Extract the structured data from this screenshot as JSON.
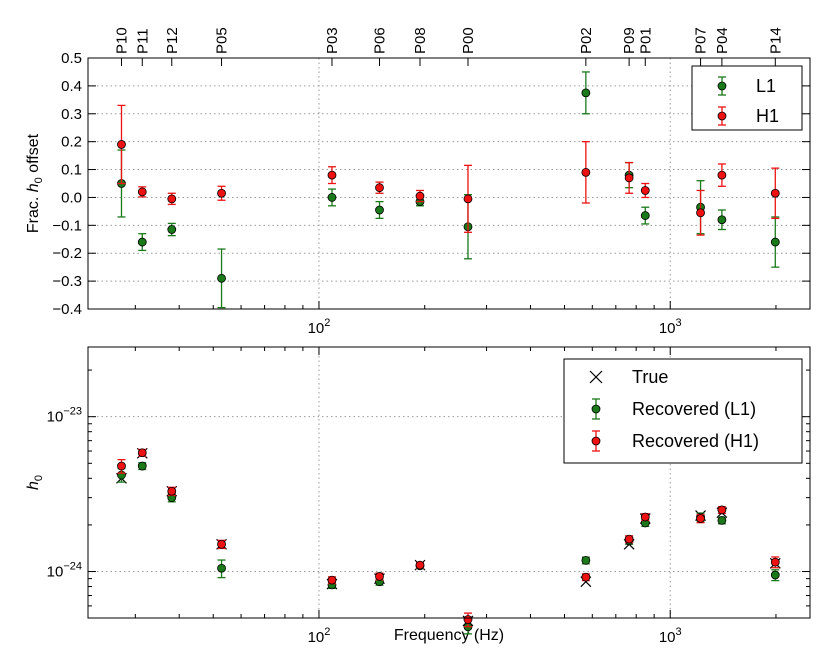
{
  "chart_data": [
    {
      "type": "scatter",
      "panel": "top",
      "ylabel": "Frac. h0 offset",
      "ylabel_prefix": "Frac. ",
      "ylabel_sym": "h",
      "ylabel_sub": "0",
      "ylabel_suffix": " offset",
      "xscale": "log",
      "xlim": [
        22,
        2500
      ],
      "ylim": [
        -0.4,
        0.5
      ],
      "yticks": [
        -0.4,
        -0.3,
        -0.2,
        -0.1,
        0.0,
        0.1,
        0.2,
        0.3,
        0.4,
        0.5
      ],
      "ytick_labels": [
        "−0.4",
        "−0.3",
        "−0.2",
        "−0.1",
        "0.0",
        "0.1",
        "0.2",
        "0.3",
        "0.4",
        "0.5"
      ],
      "xticks": [
        100,
        1000
      ],
      "xtick_base": "10",
      "xtick_exps": [
        "2",
        "3"
      ],
      "grid": true,
      "legend_position": "top-right",
      "pulsars": [
        {
          "name": "P10",
          "f": 27.4
        },
        {
          "name": "P11",
          "f": 31.4
        },
        {
          "name": "P12",
          "f": 38.1
        },
        {
          "name": "P05",
          "f": 52.8
        },
        {
          "name": "P03",
          "f": 108.9
        },
        {
          "name": "P06",
          "f": 148.7
        },
        {
          "name": "P08",
          "f": 193.9
        },
        {
          "name": "P00",
          "f": 265.6
        },
        {
          "name": "P02",
          "f": 575.2
        },
        {
          "name": "P09",
          "f": 763.8
        },
        {
          "name": "P01",
          "f": 849.1
        },
        {
          "name": "P07",
          "f": 1220.0
        },
        {
          "name": "P04",
          "f": 1403.2
        },
        {
          "name": "P14",
          "f": 1991.2
        }
      ],
      "series": [
        {
          "name": "L1",
          "color": "#1a7a1a",
          "values": [
            0.05,
            -0.16,
            -0.115,
            -0.29,
            0.0,
            -0.045,
            -0.015,
            -0.105,
            0.375,
            0.08,
            -0.065,
            -0.035,
            -0.08,
            -0.16
          ],
          "errors": [
            0.12,
            0.03,
            0.022,
            0.105,
            0.03,
            0.03,
            0.015,
            0.115,
            0.075,
            0.045,
            0.03,
            0.095,
            0.035,
            0.09
          ]
        },
        {
          "name": "H1",
          "color": "#ee1111",
          "values": [
            0.19,
            0.02,
            -0.005,
            0.015,
            0.08,
            0.035,
            0.005,
            -0.005,
            0.09,
            0.07,
            0.025,
            -0.055,
            0.08,
            0.015
          ],
          "errors": [
            0.14,
            0.018,
            0.02,
            0.025,
            0.03,
            0.02,
            0.02,
            0.12,
            0.11,
            0.055,
            0.025,
            0.08,
            0.04,
            0.09
          ]
        }
      ]
    },
    {
      "type": "scatter",
      "panel": "bottom",
      "xlabel": "Frequency (Hz)",
      "ylabel_sym": "h",
      "ylabel_sub": "0",
      "xscale": "log",
      "yscale": "log",
      "xlim": [
        22,
        2500
      ],
      "ylim_log10": [
        -24.3,
        -22.55
      ],
      "yticks_log10": [
        -24,
        -23
      ],
      "ytick_base": "10",
      "ytick_exps": [
        "−24",
        "−23"
      ],
      "xticks": [
        100,
        1000
      ],
      "xtick_base": "10",
      "xtick_exps": [
        "2",
        "3"
      ],
      "grid": true,
      "legend_position": "top-right",
      "frequencies": [
        27.4,
        31.4,
        38.1,
        52.8,
        108.9,
        148.7,
        193.9,
        265.6,
        575.2,
        763.8,
        849.1,
        1220.0,
        1403.2,
        1991.2
      ],
      "series": [
        {
          "name": "True",
          "marker": "x",
          "color": "#000000",
          "values": [
            4e-24,
            5.8e-24,
            3.3e-24,
            1.5e-24,
            8.3e-25,
            9e-25,
            1.1e-24,
            4.8e-25,
            8.6e-25,
            1.5e-24,
            2.2e-24,
            2.3e-24,
            2.4e-24,
            1.13e-24
          ]
        },
        {
          "name": "Recovered (L1)",
          "marker": "o",
          "color": "#1a7a1a",
          "values": [
            4.2e-24,
            4.8e-24,
            3e-24,
            1.05e-24,
            8.2e-25,
            8.6e-25,
            1.09e-24,
            4.4e-25,
            1.18e-24,
            1.58e-24,
            2.06e-24,
            2.25e-24,
            2.14e-24,
            9.5e-25
          ],
          "err_frac": [
            0.1,
            0.05,
            0.06,
            0.13,
            0.05,
            0.05,
            0.04,
            0.1,
            0.05,
            0.05,
            0.05,
            0.06,
            0.05,
            0.08
          ]
        },
        {
          "name": "Recovered (H1)",
          "marker": "o",
          "color": "#ee1111",
          "values": [
            4.8e-24,
            5.85e-24,
            3.3e-24,
            1.5e-24,
            8.8e-25,
            9.3e-25,
            1.1e-24,
            4.9e-25,
            9.2e-25,
            1.62e-24,
            2.25e-24,
            2.2e-24,
            2.5e-24,
            1.15e-24
          ],
          "err_frac": [
            0.1,
            0.05,
            0.06,
            0.06,
            0.05,
            0.05,
            0.04,
            0.1,
            0.05,
            0.05,
            0.05,
            0.06,
            0.05,
            0.08
          ]
        }
      ]
    }
  ]
}
